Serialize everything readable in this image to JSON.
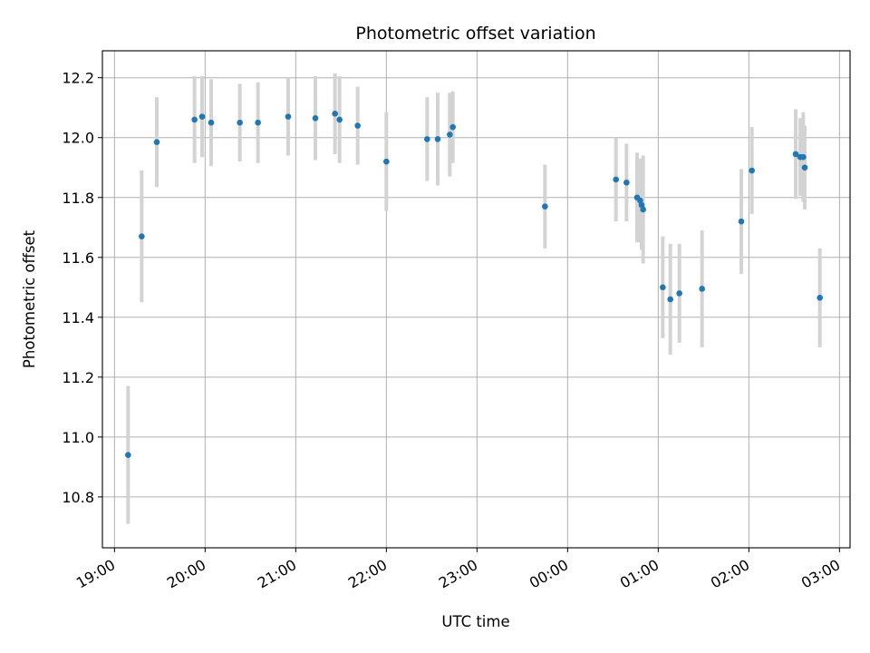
{
  "chart_data": {
    "type": "scatter",
    "title": "Photometric offset variation",
    "xlabel": "UTC time",
    "ylabel": "Photometric offset",
    "xlim": [
      "2000-01-01T18:52",
      "2000-01-02T03:07"
    ],
    "ylim": [
      10.63,
      12.29
    ],
    "grid": true,
    "x_ticks": [
      {
        "t": "2000-01-01T19:00",
        "label": "19:00"
      },
      {
        "t": "2000-01-01T20:00",
        "label": "20:00"
      },
      {
        "t": "2000-01-01T21:00",
        "label": "21:00"
      },
      {
        "t": "2000-01-01T22:00",
        "label": "22:00"
      },
      {
        "t": "2000-01-01T23:00",
        "label": "23:00"
      },
      {
        "t": "2000-01-02T00:00",
        "label": "00:00"
      },
      {
        "t": "2000-01-02T01:00",
        "label": "01:00"
      },
      {
        "t": "2000-01-02T02:00",
        "label": "02:00"
      },
      {
        "t": "2000-01-02T03:00",
        "label": "03:00"
      }
    ],
    "y_ticks": [
      10.8,
      11.0,
      11.2,
      11.4,
      11.6,
      11.8,
      12.0,
      12.2
    ],
    "point_color": "#1f77b4",
    "errorbar_color": "#d3d3d3",
    "points": [
      {
        "t": "2000-01-01T19:09",
        "y": 10.94,
        "err": 0.23
      },
      {
        "t": "2000-01-01T19:18",
        "y": 11.67,
        "err": 0.22
      },
      {
        "t": "2000-01-01T19:28",
        "y": 11.985,
        "err": 0.15
      },
      {
        "t": "2000-01-01T19:53",
        "y": 12.06,
        "err": 0.145
      },
      {
        "t": "2000-01-01T19:58",
        "y": 12.07,
        "err": 0.135
      },
      {
        "t": "2000-01-01T20:04",
        "y": 12.05,
        "err": 0.145
      },
      {
        "t": "2000-01-01T20:23",
        "y": 12.05,
        "err": 0.13
      },
      {
        "t": "2000-01-01T20:35",
        "y": 12.05,
        "err": 0.135
      },
      {
        "t": "2000-01-01T20:55",
        "y": 12.07,
        "err": 0.13
      },
      {
        "t": "2000-01-01T21:13",
        "y": 12.065,
        "err": 0.14
      },
      {
        "t": "2000-01-01T21:26",
        "y": 12.08,
        "err": 0.135
      },
      {
        "t": "2000-01-01T21:29",
        "y": 12.06,
        "err": 0.145
      },
      {
        "t": "2000-01-01T21:41",
        "y": 12.04,
        "err": 0.13
      },
      {
        "t": "2000-01-01T22:00",
        "y": 11.92,
        "err": 0.165
      },
      {
        "t": "2000-01-01T22:27",
        "y": 11.995,
        "err": 0.14
      },
      {
        "t": "2000-01-01T22:34",
        "y": 11.995,
        "err": 0.155
      },
      {
        "t": "2000-01-01T22:42",
        "y": 12.01,
        "err": 0.14
      },
      {
        "t": "2000-01-01T22:44",
        "y": 12.035,
        "err": 0.12
      },
      {
        "t": "2000-01-01T23:45",
        "y": 11.77,
        "err": 0.14
      },
      {
        "t": "2000-01-02T00:32",
        "y": 11.86,
        "err": 0.14
      },
      {
        "t": "2000-01-02T00:39",
        "y": 11.85,
        "err": 0.13
      },
      {
        "t": "2000-01-02T00:46",
        "y": 11.8,
        "err": 0.15
      },
      {
        "t": "2000-01-02T00:48",
        "y": 11.79,
        "err": 0.14
      },
      {
        "t": "2000-01-02T00:49",
        "y": 11.775,
        "err": 0.15
      },
      {
        "t": "2000-01-02T00:50",
        "y": 11.76,
        "err": 0.18
      },
      {
        "t": "2000-01-02T01:03",
        "y": 11.5,
        "err": 0.17
      },
      {
        "t": "2000-01-02T01:08",
        "y": 11.46,
        "err": 0.185
      },
      {
        "t": "2000-01-02T01:14",
        "y": 11.48,
        "err": 0.165
      },
      {
        "t": "2000-01-02T01:29",
        "y": 11.495,
        "err": 0.195
      },
      {
        "t": "2000-01-02T01:55",
        "y": 11.72,
        "err": 0.175
      },
      {
        "t": "2000-01-02T02:02",
        "y": 11.89,
        "err": 0.145
      },
      {
        "t": "2000-01-02T02:31",
        "y": 11.945,
        "err": 0.15
      },
      {
        "t": "2000-01-02T02:34",
        "y": 11.935,
        "err": 0.13
      },
      {
        "t": "2000-01-02T02:36",
        "y": 11.935,
        "err": 0.15
      },
      {
        "t": "2000-01-02T02:37",
        "y": 11.9,
        "err": 0.14
      },
      {
        "t": "2000-01-02T02:47",
        "y": 11.465,
        "err": 0.165
      }
    ]
  }
}
